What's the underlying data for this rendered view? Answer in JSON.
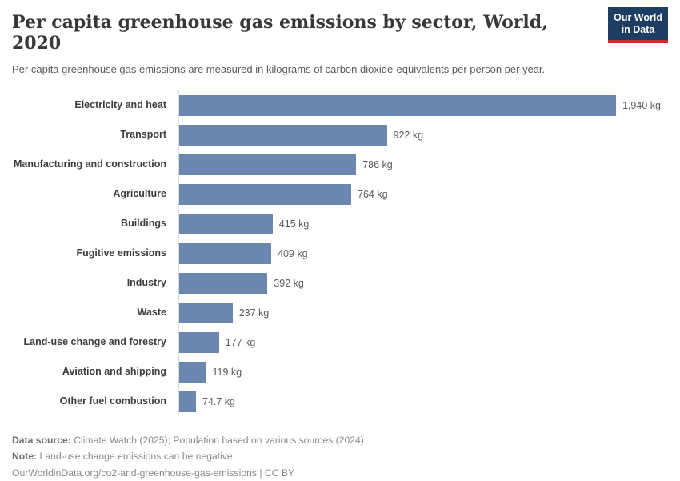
{
  "header": {
    "title": "Per capita greenhouse gas emissions by sector, World, 2020",
    "subtitle": "Per capita greenhouse gas emissions are measured in kilograms of carbon dioxide-equivalents per person per year.",
    "logo": {
      "line1": "Our World",
      "line2": "in Data",
      "bg_color": "#1d3d63",
      "accent_color": "#cb2a2a"
    }
  },
  "chart_data": {
    "type": "bar",
    "orientation": "horizontal",
    "title": "Per capita greenhouse gas emissions by sector, World, 2020",
    "xlabel": "",
    "ylabel": "",
    "unit": "kg",
    "xlim": [
      0,
      1940
    ],
    "grid": false,
    "legend": "none",
    "bar_color": "#6c87af",
    "categories": [
      "Electricity and heat",
      "Transport",
      "Manufacturing and construction",
      "Agriculture",
      "Buildings",
      "Fugitive emissions",
      "Industry",
      "Waste",
      "Land-use change and forestry",
      "Aviation and shipping",
      "Other fuel combustion"
    ],
    "values": [
      1940,
      922,
      786,
      764,
      415,
      409,
      392,
      237,
      177,
      119,
      74.7
    ],
    "value_labels": [
      "1,940 kg",
      "922 kg",
      "786 kg",
      "764 kg",
      "415 kg",
      "409 kg",
      "392 kg",
      "237 kg",
      "177 kg",
      "119 kg",
      "74.7 kg"
    ]
  },
  "footer": {
    "data_source_label": "Data source:",
    "data_source_text": " Climate Watch (2025); Population based on various sources (2024)",
    "note_label": "Note:",
    "note_text": " Land-use change emissions can be negative.",
    "attribution": "OurWorldinData.org/co2-and-greenhouse-gas-emissions | CC BY"
  }
}
